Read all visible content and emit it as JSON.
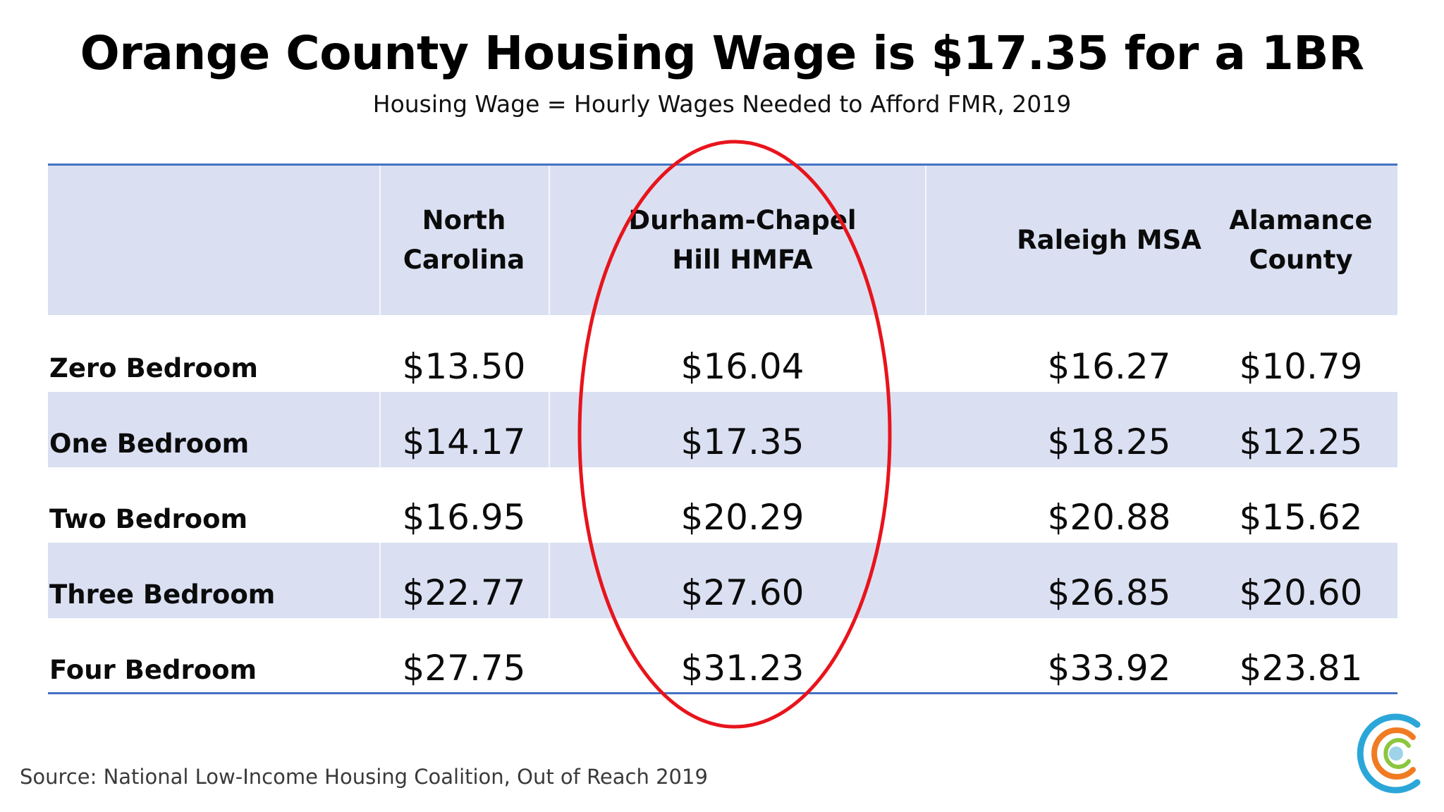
{
  "title": "Orange County Housing Wage is $17.35 for a 1BR",
  "subtitle": "Housing Wage = Hourly Wages Needed to Afford FMR, 2019",
  "table": {
    "columns": [
      {
        "line1": "North",
        "line2": "Carolina"
      },
      {
        "line1": "Durham-Chapel",
        "line2": "Hill HMFA"
      },
      {
        "line1": "Raleigh MSA",
        "line2": ""
      },
      {
        "line1": "Alamance",
        "line2": "County"
      }
    ],
    "rows": [
      {
        "label": "Zero Bedroom",
        "values": [
          "$13.50",
          "$16.04",
          "$16.27",
          "$10.79"
        ]
      },
      {
        "label": "One Bedroom",
        "values": [
          "$14.17",
          "$17.35",
          "$18.25",
          "$12.25"
        ]
      },
      {
        "label": "Two Bedroom",
        "values": [
          "$16.95",
          "$20.29",
          "$20.88",
          "$15.62"
        ]
      },
      {
        "label": "Three Bedroom",
        "values": [
          "$22.77",
          "$27.60",
          "$26.85",
          "$20.60"
        ]
      },
      {
        "label": "Four Bedroom",
        "values": [
          "$27.75",
          "$31.23",
          "$33.92",
          "$23.81"
        ]
      }
    ]
  },
  "source": "Source: National Low-Income Housing Coalition, Out of Reach 2019",
  "colors": {
    "band": "#dae0f2",
    "rule": "#4472c4",
    "highlight_ellipse": "#e8141c",
    "logo_blue": "#2aa7d8",
    "logo_orange": "#f07b22",
    "logo_green": "#8cc63f"
  },
  "icons": {
    "logo": "concentric-c-logo"
  }
}
